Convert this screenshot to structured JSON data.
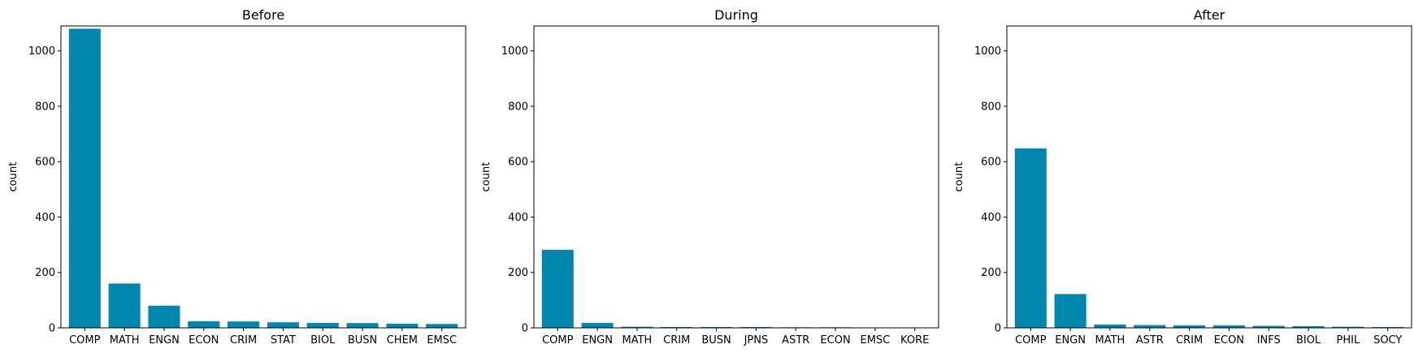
{
  "chart_data": [
    {
      "type": "bar",
      "title": "Before",
      "ylabel": "count",
      "xlabel": "",
      "ylim": [
        0,
        1090
      ],
      "yticks": [
        0,
        200,
        400,
        600,
        800,
        1000
      ],
      "categories": [
        "COMP",
        "MATH",
        "ENGN",
        "ECON",
        "CRIM",
        "STAT",
        "BIOL",
        "BUSN",
        "CHEM",
        "EMSC"
      ],
      "values": [
        1080,
        160,
        80,
        24,
        23,
        20,
        18,
        17,
        15,
        14
      ],
      "color": "#0087ad",
      "grid": false
    },
    {
      "type": "bar",
      "title": "During",
      "ylabel": "count",
      "xlabel": "",
      "ylim": [
        0,
        1090
      ],
      "yticks": [
        0,
        200,
        400,
        600,
        800,
        1000
      ],
      "categories": [
        "COMP",
        "ENGN",
        "MATH",
        "CRIM",
        "BUSN",
        "JPNS",
        "ASTR",
        "ECON",
        "EMSC",
        "KORE"
      ],
      "values": [
        282,
        18,
        4,
        3,
        3,
        3,
        2,
        2,
        1,
        1
      ],
      "color": "#0087ad",
      "grid": false
    },
    {
      "type": "bar",
      "title": "After",
      "ylabel": "count",
      "xlabel": "",
      "ylim": [
        0,
        1090
      ],
      "yticks": [
        0,
        200,
        400,
        600,
        800,
        1000
      ],
      "categories": [
        "COMP",
        "ENGN",
        "MATH",
        "ASTR",
        "CRIM",
        "ECON",
        "INFS",
        "BIOL",
        "PHIL",
        "SOCY"
      ],
      "values": [
        648,
        122,
        12,
        10,
        9,
        9,
        7,
        6,
        4,
        3
      ],
      "color": "#0087ad",
      "grid": false
    }
  ]
}
